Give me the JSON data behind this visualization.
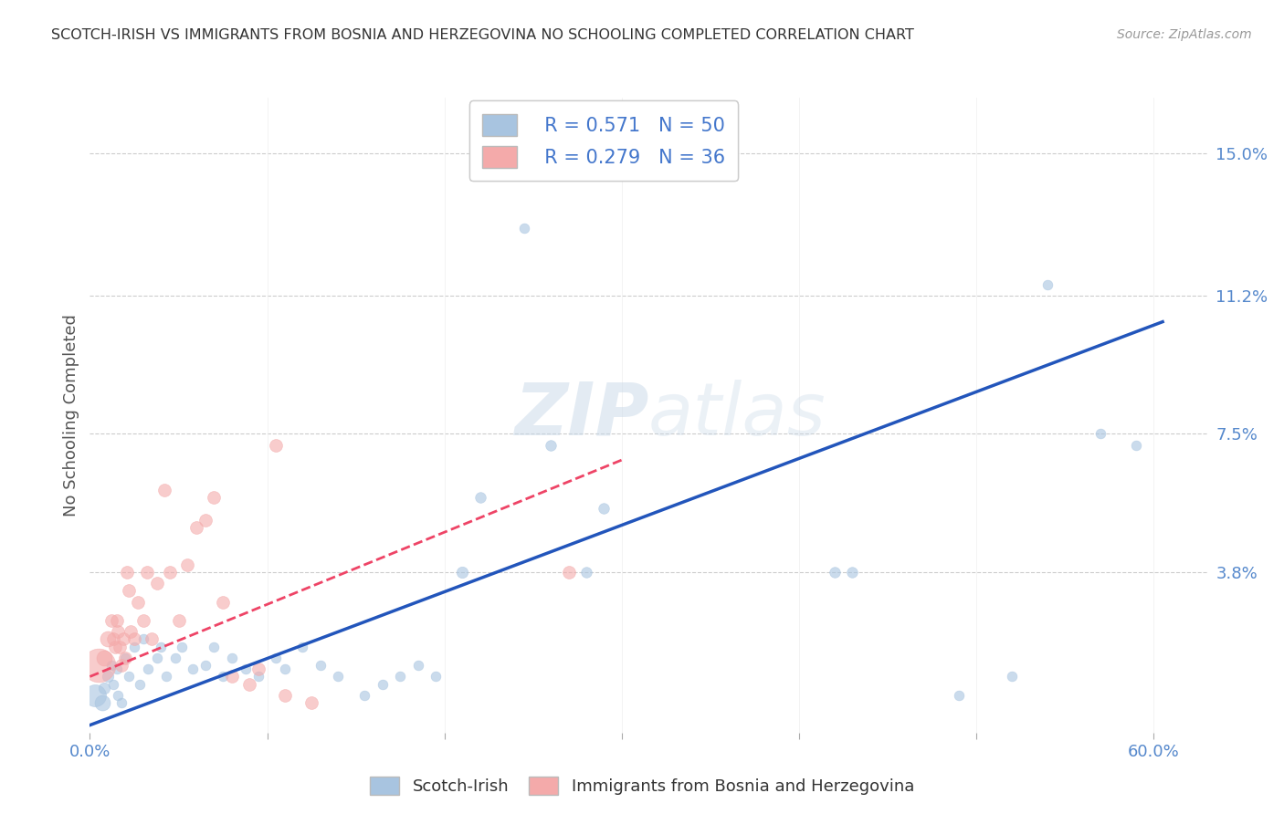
{
  "title": "SCOTCH-IRISH VS IMMIGRANTS FROM BOSNIA AND HERZEGOVINA NO SCHOOLING COMPLETED CORRELATION CHART",
  "source": "Source: ZipAtlas.com",
  "ylabel": "No Schooling Completed",
  "xlim": [
    0.0,
    0.63
  ],
  "ylim": [
    -0.005,
    0.165
  ],
  "xtick_positions": [
    0.0,
    0.1,
    0.2,
    0.3,
    0.4,
    0.5,
    0.6
  ],
  "xticklabels": [
    "0.0%",
    "",
    "",
    "",
    "",
    "",
    "60.0%"
  ],
  "ytick_positions": [
    0.038,
    0.075,
    0.112,
    0.15
  ],
  "yticklabels": [
    "3.8%",
    "7.5%",
    "11.2%",
    "15.0%"
  ],
  "r_blue": "0.571",
  "n_blue": "50",
  "r_pink": "0.279",
  "n_pink": "36",
  "legend_label_blue": "Scotch-Irish",
  "legend_label_pink": "Immigrants from Bosnia and Herzegovina",
  "blue_color": "#A8C4E0",
  "pink_color": "#F4AAAA",
  "line_blue_color": "#2255BB",
  "line_pink_color": "#EE4466",
  "watermark_color": "#C8D8E8",
  "background_color": "#FFFFFF",
  "grid_color": "#CCCCCC",
  "tick_color": "#5588CC",
  "title_color": "#333333",
  "source_color": "#999999",
  "blue_line_x": [
    0.0,
    0.605
  ],
  "blue_line_y": [
    -0.003,
    0.105
  ],
  "pink_line_x": [
    0.0,
    0.3
  ],
  "pink_line_y": [
    0.01,
    0.068
  ],
  "blue_points": [
    [
      0.003,
      0.005,
      300
    ],
    [
      0.007,
      0.003,
      150
    ],
    [
      0.008,
      0.007,
      80
    ],
    [
      0.01,
      0.01,
      80
    ],
    [
      0.012,
      0.013,
      60
    ],
    [
      0.013,
      0.008,
      60
    ],
    [
      0.015,
      0.012,
      60
    ],
    [
      0.016,
      0.005,
      60
    ],
    [
      0.018,
      0.003,
      60
    ],
    [
      0.02,
      0.015,
      60
    ],
    [
      0.022,
      0.01,
      60
    ],
    [
      0.025,
      0.018,
      60
    ],
    [
      0.028,
      0.008,
      60
    ],
    [
      0.03,
      0.02,
      60
    ],
    [
      0.033,
      0.012,
      60
    ],
    [
      0.038,
      0.015,
      60
    ],
    [
      0.04,
      0.018,
      60
    ],
    [
      0.043,
      0.01,
      60
    ],
    [
      0.048,
      0.015,
      60
    ],
    [
      0.052,
      0.018,
      60
    ],
    [
      0.058,
      0.012,
      60
    ],
    [
      0.065,
      0.013,
      60
    ],
    [
      0.07,
      0.018,
      60
    ],
    [
      0.075,
      0.01,
      60
    ],
    [
      0.08,
      0.015,
      60
    ],
    [
      0.088,
      0.012,
      60
    ],
    [
      0.095,
      0.01,
      60
    ],
    [
      0.105,
      0.015,
      60
    ],
    [
      0.11,
      0.012,
      60
    ],
    [
      0.12,
      0.018,
      60
    ],
    [
      0.13,
      0.013,
      60
    ],
    [
      0.14,
      0.01,
      60
    ],
    [
      0.155,
      0.005,
      60
    ],
    [
      0.165,
      0.008,
      60
    ],
    [
      0.175,
      0.01,
      60
    ],
    [
      0.185,
      0.013,
      60
    ],
    [
      0.195,
      0.01,
      60
    ],
    [
      0.21,
      0.038,
      80
    ],
    [
      0.22,
      0.058,
      70
    ],
    [
      0.26,
      0.072,
      70
    ],
    [
      0.28,
      0.038,
      70
    ],
    [
      0.29,
      0.055,
      70
    ],
    [
      0.245,
      0.13,
      60
    ],
    [
      0.42,
      0.038,
      70
    ],
    [
      0.43,
      0.038,
      70
    ],
    [
      0.49,
      0.005,
      60
    ],
    [
      0.52,
      0.01,
      60
    ],
    [
      0.54,
      0.115,
      60
    ],
    [
      0.57,
      0.075,
      60
    ],
    [
      0.59,
      0.072,
      60
    ]
  ],
  "pink_points": [
    [
      0.005,
      0.013,
      700
    ],
    [
      0.008,
      0.015,
      150
    ],
    [
      0.01,
      0.02,
      150
    ],
    [
      0.012,
      0.025,
      100
    ],
    [
      0.013,
      0.02,
      100
    ],
    [
      0.014,
      0.018,
      100
    ],
    [
      0.015,
      0.025,
      100
    ],
    [
      0.016,
      0.022,
      100
    ],
    [
      0.017,
      0.018,
      100
    ],
    [
      0.018,
      0.013,
      100
    ],
    [
      0.019,
      0.02,
      100
    ],
    [
      0.02,
      0.015,
      100
    ],
    [
      0.021,
      0.038,
      100
    ],
    [
      0.022,
      0.033,
      100
    ],
    [
      0.023,
      0.022,
      100
    ],
    [
      0.025,
      0.02,
      100
    ],
    [
      0.027,
      0.03,
      100
    ],
    [
      0.03,
      0.025,
      100
    ],
    [
      0.032,
      0.038,
      100
    ],
    [
      0.035,
      0.02,
      100
    ],
    [
      0.038,
      0.035,
      100
    ],
    [
      0.042,
      0.06,
      100
    ],
    [
      0.045,
      0.038,
      100
    ],
    [
      0.05,
      0.025,
      100
    ],
    [
      0.055,
      0.04,
      100
    ],
    [
      0.06,
      0.05,
      100
    ],
    [
      0.065,
      0.052,
      100
    ],
    [
      0.07,
      0.058,
      100
    ],
    [
      0.075,
      0.03,
      100
    ],
    [
      0.08,
      0.01,
      100
    ],
    [
      0.09,
      0.008,
      100
    ],
    [
      0.095,
      0.012,
      100
    ],
    [
      0.105,
      0.072,
      100
    ],
    [
      0.11,
      0.005,
      100
    ],
    [
      0.125,
      0.003,
      100
    ],
    [
      0.27,
      0.038,
      100
    ]
  ]
}
